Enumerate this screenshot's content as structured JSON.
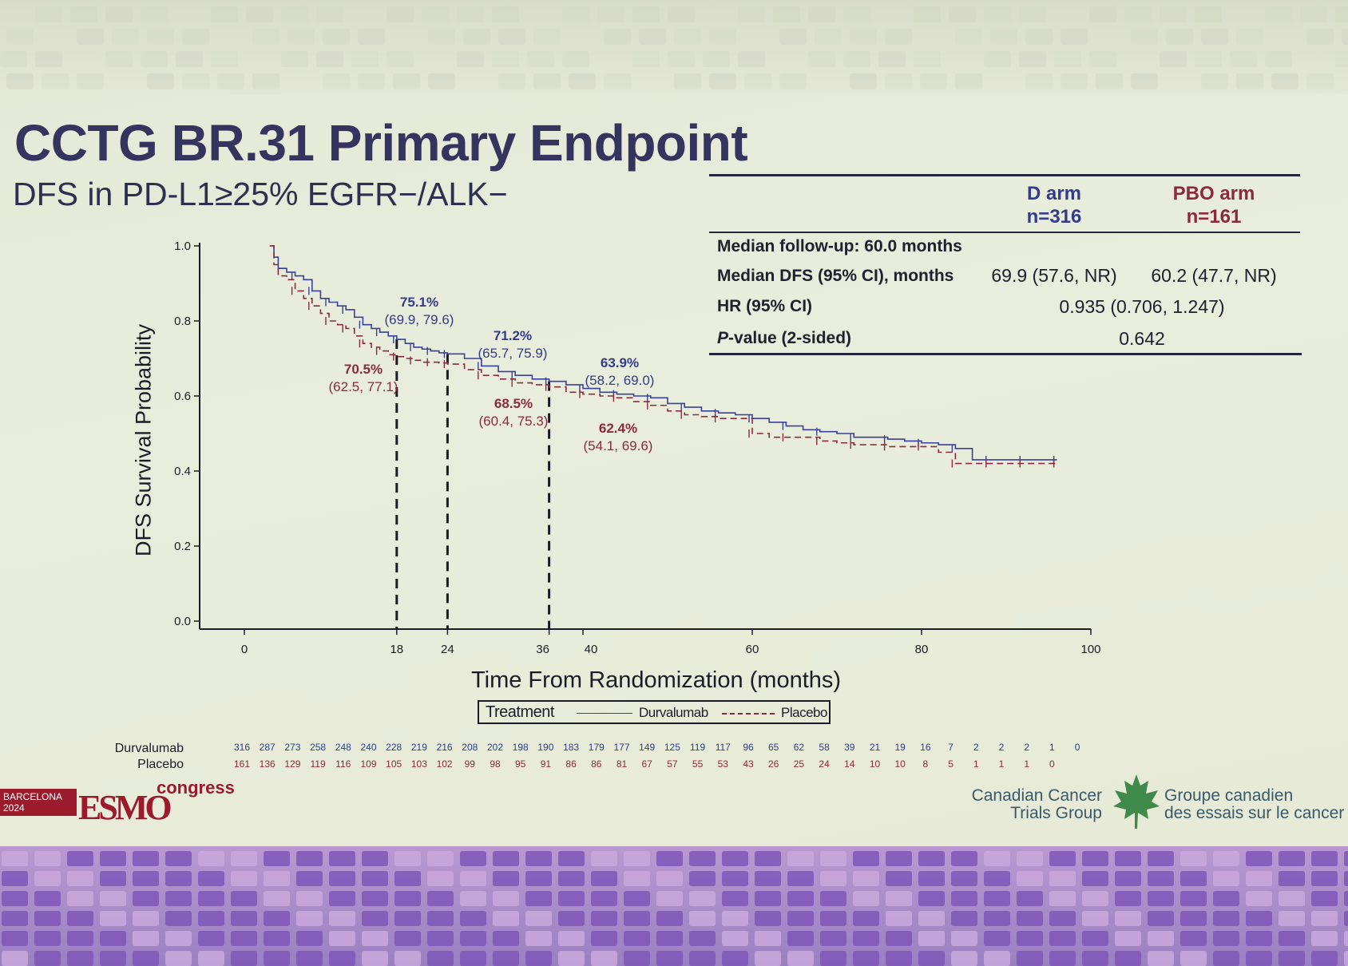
{
  "slide": {
    "title": "CCTG BR.31 Primary Endpoint",
    "subtitle": "DFS in PD-L1≥25% EGFR−/ALK−"
  },
  "summary_table": {
    "col_d": {
      "line1": "D arm",
      "line2": "n=316"
    },
    "col_p": {
      "line1": "PBO arm",
      "line2": "n=161"
    },
    "rows": [
      {
        "label": "Median follow-up: 60.0 months"
      },
      {
        "label": "Median DFS (95% CI), months",
        "d": "69.9 (57.6, NR)",
        "p": "60.2 (47.7, NR)"
      },
      {
        "label": "HR (95% CI)",
        "shared": "0.935 (0.706, 1.247)"
      },
      {
        "label_italic": "P",
        "label_rest": "-value (2-sided)",
        "shared": "0.642"
      }
    ]
  },
  "chart_data": {
    "type": "line",
    "title": "",
    "xlabel": "Time From Randomization (months)",
    "ylabel": "DFS Survival Probability",
    "xlim": [
      0,
      100
    ],
    "ylim": [
      0,
      1
    ],
    "xticks": [
      "0",
      "18",
      "24",
      "36",
      "40",
      "60",
      "80",
      "100"
    ],
    "yticks": [
      "0.0",
      "0.2",
      "0.4",
      "0.6",
      "0.8",
      "1.0"
    ],
    "grid": false,
    "legend": {
      "title": "Treatment",
      "position": "bottom",
      "entries": [
        "Durvalumab",
        "Placebo"
      ]
    },
    "series": [
      {
        "name": "Durvalumab",
        "color": "#3a3f9a",
        "style": "solid",
        "x": [
          3,
          3.5,
          4,
          5,
          6,
          7,
          8,
          9,
          10,
          11,
          12,
          13,
          14,
          15,
          16,
          17,
          18,
          19,
          20,
          21,
          22,
          23,
          24,
          26,
          28,
          30,
          32,
          34,
          36,
          38,
          40,
          42,
          44,
          46,
          48,
          50,
          52,
          54,
          56,
          58,
          60,
          62,
          64,
          66,
          68,
          70,
          72,
          74,
          76,
          78,
          80,
          82,
          84,
          86,
          88,
          90,
          92,
          94,
          96
        ],
        "y": [
          1.0,
          0.97,
          0.94,
          0.93,
          0.92,
          0.91,
          0.88,
          0.86,
          0.85,
          0.84,
          0.83,
          0.81,
          0.79,
          0.78,
          0.77,
          0.76,
          0.751,
          0.74,
          0.73,
          0.725,
          0.72,
          0.715,
          0.712,
          0.7,
          0.68,
          0.665,
          0.655,
          0.645,
          0.639,
          0.63,
          0.62,
          0.61,
          0.605,
          0.6,
          0.595,
          0.58,
          0.57,
          0.56,
          0.555,
          0.55,
          0.54,
          0.53,
          0.52,
          0.51,
          0.505,
          0.5,
          0.49,
          0.49,
          0.485,
          0.48,
          0.475,
          0.47,
          0.46,
          0.43,
          0.43,
          0.43,
          0.43,
          0.43,
          0.43
        ]
      },
      {
        "name": "Placebo",
        "color": "#8a2a3c",
        "style": "dashed",
        "x": [
          3,
          3.5,
          4,
          5,
          6,
          7,
          8,
          9,
          10,
          11,
          12,
          13,
          14,
          15,
          16,
          17,
          18,
          19,
          20,
          21,
          22,
          23,
          24,
          26,
          28,
          30,
          32,
          34,
          36,
          38,
          40,
          42,
          44,
          46,
          48,
          50,
          52,
          54,
          56,
          58,
          60,
          62,
          64,
          66,
          68,
          70,
          72,
          74,
          76,
          78,
          80,
          82,
          84,
          86,
          88,
          90,
          92,
          94,
          96
        ],
        "y": [
          1.0,
          0.95,
          0.92,
          0.91,
          0.88,
          0.86,
          0.84,
          0.82,
          0.8,
          0.79,
          0.78,
          0.76,
          0.74,
          0.73,
          0.72,
          0.71,
          0.705,
          0.7,
          0.695,
          0.69,
          0.69,
          0.688,
          0.685,
          0.67,
          0.655,
          0.645,
          0.635,
          0.63,
          0.624,
          0.61,
          0.605,
          0.6,
          0.595,
          0.585,
          0.575,
          0.56,
          0.55,
          0.545,
          0.54,
          0.54,
          0.5,
          0.49,
          0.49,
          0.49,
          0.48,
          0.475,
          0.47,
          0.47,
          0.465,
          0.465,
          0.465,
          0.45,
          0.42,
          0.42,
          0.42,
          0.42,
          0.42,
          0.42,
          0.42
        ]
      }
    ],
    "reference_lines": [
      {
        "x": 18,
        "d_y": 0.751,
        "p_y": 0.705
      },
      {
        "x": 24,
        "d_y": 0.712,
        "p_y": 0.685
      },
      {
        "x": 36,
        "d_y": 0.639,
        "p_y": 0.624
      }
    ],
    "annotations": [
      {
        "series": "Durvalumab",
        "x": 18,
        "pct": "75.1%",
        "ci": "(69.9, 79.6)"
      },
      {
        "series": "Placebo",
        "x": 18,
        "pct": "70.5%",
        "ci": "(62.5, 77.1)"
      },
      {
        "series": "Durvalumab",
        "x": 24,
        "pct": "71.2%",
        "ci": "(65.7, 75.9)"
      },
      {
        "series": "Placebo",
        "x": 24,
        "pct": "68.5%",
        "ci": "(60.4, 75.3)"
      },
      {
        "series": "Durvalumab",
        "x": 36,
        "pct": "63.9%",
        "ci": "(58.2, 69.0)"
      },
      {
        "series": "Placebo",
        "x": 36,
        "pct": "62.4%",
        "ci": "(54.1, 69.6)"
      }
    ]
  },
  "risk_table": {
    "durvalumab_label": "Durvalumab",
    "placebo_label": "Placebo",
    "durvalumab": [
      "316",
      "287",
      "273",
      "258",
      "248",
      "240",
      "228",
      "219",
      "216",
      "208",
      "202",
      "198",
      "190",
      "183",
      "179",
      "177",
      "149",
      "125",
      "119",
      "117",
      "96",
      "65",
      "62",
      "58",
      "39",
      "21",
      "19",
      "16",
      "7",
      "2",
      "2",
      "2",
      "1",
      "0"
    ],
    "placebo": [
      "161",
      "136",
      "129",
      "119",
      "116",
      "109",
      "105",
      "103",
      "102",
      "99",
      "98",
      "95",
      "91",
      "86",
      "86",
      "81",
      "67",
      "57",
      "55",
      "53",
      "43",
      "26",
      "25",
      "24",
      "14",
      "10",
      "10",
      "8",
      "5",
      "1",
      "1",
      "1",
      "0"
    ]
  },
  "branding": {
    "barcelona_line1": "BARCELONA",
    "barcelona_line2": "2024",
    "esmo": "ESMO",
    "congress": "congress",
    "cctg_en_line1": "Canadian Cancer",
    "cctg_en_line2": "Trials Group",
    "cctg_fr_line1": "Groupe canadien",
    "cctg_fr_line2": "des essais sur le cancer",
    "colors": {
      "durvalumab": "#3a3f9a",
      "placebo": "#8a2a3c",
      "esmo_red": "#9b1b2c"
    }
  }
}
